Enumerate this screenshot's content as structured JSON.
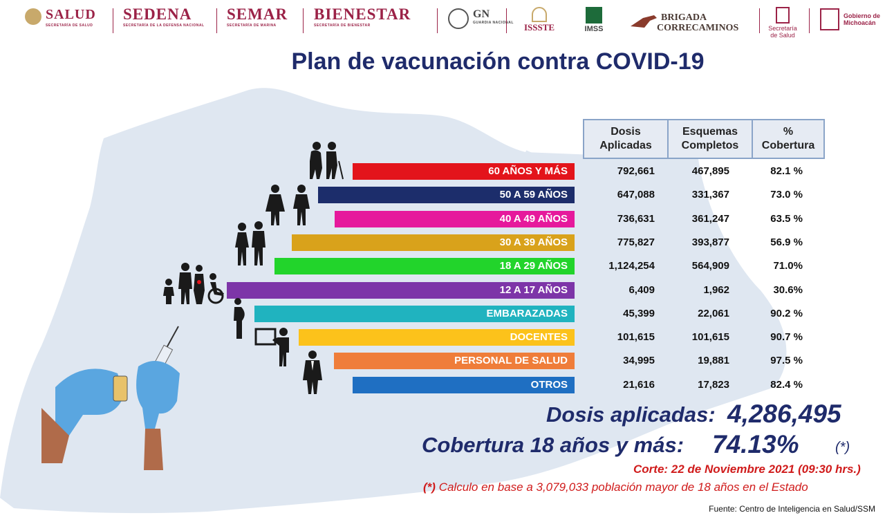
{
  "header": {
    "logos": {
      "salud": "SALUD",
      "salud_sub": "SECRETARÍA DE SALUD",
      "sedena": "SEDENA",
      "sedena_sub": "SECRETARÍA DE LA DEFENSA NACIONAL",
      "semar": "SEMAR",
      "semar_sub": "SECRETARÍA DE MARINA",
      "bienestar": "BIENESTAR",
      "bienestar_sub": "SECRETARÍA DE BIENESTAR",
      "gn": "GN",
      "gn_sub": "GUARDIA NACIONAL",
      "issste": "ISSSTE",
      "imss": "IMSS",
      "brigada1": "BRIGADA",
      "brigada2": "CORRECAMINOS",
      "ss1": "Secretaría",
      "ss2": "de Salud",
      "gob1": "Gobierno de",
      "gob2": "Michoacán"
    },
    "title": "Plan de vacunación contra COVID-19"
  },
  "chart_data": {
    "type": "table",
    "columns": [
      "Dosis Aplicadas",
      "Esquemas Completos",
      "% Cobertura"
    ],
    "columns_line1": [
      "Dosis",
      "Esquemas",
      "%"
    ],
    "columns_line2": [
      "Aplicadas",
      "Completos",
      "Cobertura"
    ],
    "rows": [
      {
        "label": "60 AÑOS Y MÁS",
        "dosis": "792,661",
        "esquemas": "467,895",
        "cobertura": "82.1 %",
        "color": "#e3141b"
      },
      {
        "label": "50 A 59 AÑOS",
        "dosis": "647,088",
        "esquemas": "331,367",
        "cobertura": "73.0 %",
        "color": "#1c2d6b"
      },
      {
        "label": "40 A 49 AÑOS",
        "dosis": "736,631",
        "esquemas": "361,247",
        "cobertura": "63.5 %",
        "color": "#e6199c"
      },
      {
        "label": "30 A 39 AÑOS",
        "dosis": "775,827",
        "esquemas": "393,877",
        "cobertura": "56.9 %",
        "color": "#d9a21b"
      },
      {
        "label": "18 A 29 AÑOS",
        "dosis": "1,124,254",
        "esquemas": "564,909",
        "cobertura": "71.0%",
        "color": "#22d42b"
      },
      {
        "label": "12 A 17 AÑOS",
        "dosis": "6,409",
        "esquemas": "1,962",
        "cobertura": "30.6%",
        "color": "#7d35a8"
      },
      {
        "label": "EMBARAZADAS",
        "dosis": "45,399",
        "esquemas": "22,061",
        "cobertura": "90.2 %",
        "color": "#20b3bf"
      },
      {
        "label": "DOCENTES",
        "dosis": "101,615",
        "esquemas": "101,615",
        "cobertura": "90.7 %",
        "color": "#fcc21b"
      },
      {
        "label": "PERSONAL DE SALUD",
        "dosis": "34,995",
        "esquemas": "19,881",
        "cobertura": "97.5 %",
        "color": "#ef7d3a"
      },
      {
        "label": "OTROS",
        "dosis": "21,616",
        "esquemas": "17,823",
        "cobertura": "82.4 %",
        "color": "#1f6fc2"
      }
    ]
  },
  "summary": {
    "dosis_label": "Dosis aplicadas:",
    "dosis_value": "4,286,495",
    "cobertura_label": "Cobertura 18 años y más:",
    "cobertura_value": "74.13%",
    "cobertura_note": "(*)",
    "corte": "Corte: 22 de Noviembre 2021 (09:30 hrs.)",
    "nota_mark": "(*)",
    "nota": "Calculo en base a 3,079,033 población mayor de 18 años en el Estado",
    "fuente": "Fuente: Centro de Inteligencia en Salud/SSM"
  }
}
